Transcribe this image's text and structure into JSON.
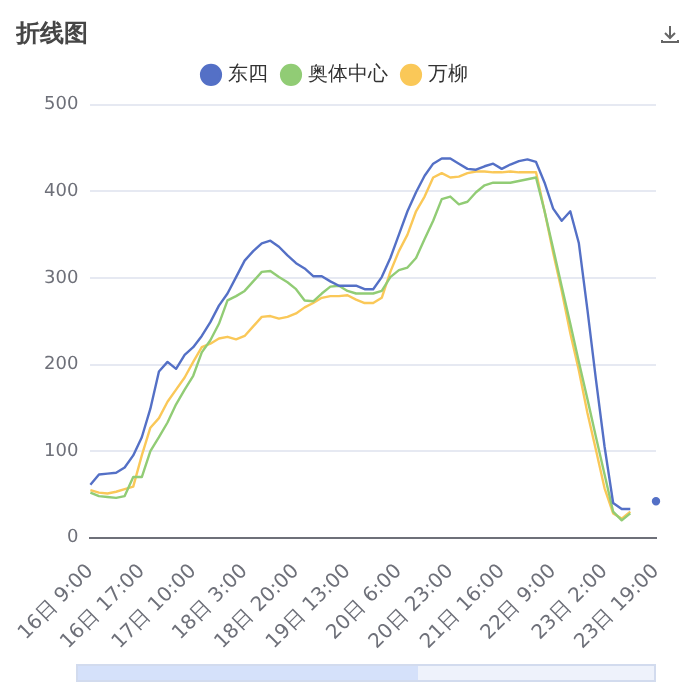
{
  "chart_data": {
    "type": "line",
    "title": "折线图",
    "legend": "top",
    "grid": "y",
    "marker": "none",
    "categories": [
      "16日 9:00",
      null,
      null,
      null,
      null,
      null,
      "16日 17:00",
      null,
      null,
      null,
      null,
      null,
      "17日 10:00",
      null,
      null,
      null,
      null,
      null,
      "18日 3:00",
      null,
      null,
      null,
      null,
      null,
      "18日 20:00",
      null,
      null,
      null,
      null,
      null,
      "19日 13:00",
      null,
      null,
      null,
      null,
      null,
      "20日 6:00",
      null,
      null,
      null,
      null,
      null,
      "20日 23:00",
      null,
      null,
      null,
      null,
      null,
      "21日 16:00",
      null,
      null,
      null,
      null,
      null,
      "22日 9:00",
      null,
      null,
      null,
      null,
      null,
      "23日 2:00",
      null,
      null,
      null,
      null,
      null,
      "23日 19:00"
    ],
    "ylim": [
      0,
      500
    ],
    "yticks": [
      0,
      100,
      200,
      300,
      400,
      500
    ],
    "series": [
      {
        "name": "东四",
        "color": "#5470c6",
        "values": [
          61,
          73,
          74,
          75,
          81,
          95,
          116,
          149,
          192,
          203,
          195,
          211,
          220,
          233,
          249,
          268,
          282,
          301,
          320,
          331,
          340,
          343,
          336,
          326,
          317,
          311,
          302,
          302,
          296,
          291,
          291,
          291,
          287,
          287,
          301,
          323,
          350,
          377,
          399,
          418,
          432,
          438,
          438,
          432,
          426,
          425,
          429,
          432,
          426,
          431,
          435,
          437,
          434,
          410,
          380,
          366,
          377,
          340,
          263,
          182,
          105,
          40,
          33,
          33,
          null,
          null,
          42
        ]
      },
      {
        "name": "奥体中心",
        "color": "#91cc75",
        "values": [
          52,
          48,
          47,
          46,
          48,
          70,
          70,
          100,
          116,
          133,
          154,
          171,
          187,
          214,
          228,
          247,
          274,
          279,
          285,
          296,
          307,
          308,
          301,
          295,
          287,
          274,
          273,
          282,
          290,
          291,
          285,
          282,
          282,
          282,
          285,
          301,
          309,
          312,
          323,
          345,
          366,
          391,
          394,
          385,
          388,
          399,
          407,
          410,
          410,
          410,
          412,
          414,
          416,
          377,
          334,
          290,
          247,
          203,
          160,
          116,
          73,
          30,
          20,
          28,
          null,
          null,
          null
        ]
      },
      {
        "name": "万柳",
        "color": "#fac858",
        "values": [
          55,
          52,
          51,
          53,
          56,
          59,
          95,
          127,
          138,
          157,
          171,
          185,
          203,
          220,
          224,
          230,
          232,
          229,
          233,
          244,
          255,
          256,
          253,
          255,
          259,
          266,
          271,
          277,
          279,
          279,
          280,
          275,
          271,
          271,
          277,
          307,
          331,
          350,
          377,
          394,
          416,
          421,
          416,
          417,
          421,
          423,
          423,
          422,
          422,
          423,
          422,
          422,
          422,
          377,
          329,
          285,
          236,
          193,
          144,
          101,
          57,
          28,
          22,
          30,
          null,
          null,
          null
        ]
      }
    ]
  }
}
